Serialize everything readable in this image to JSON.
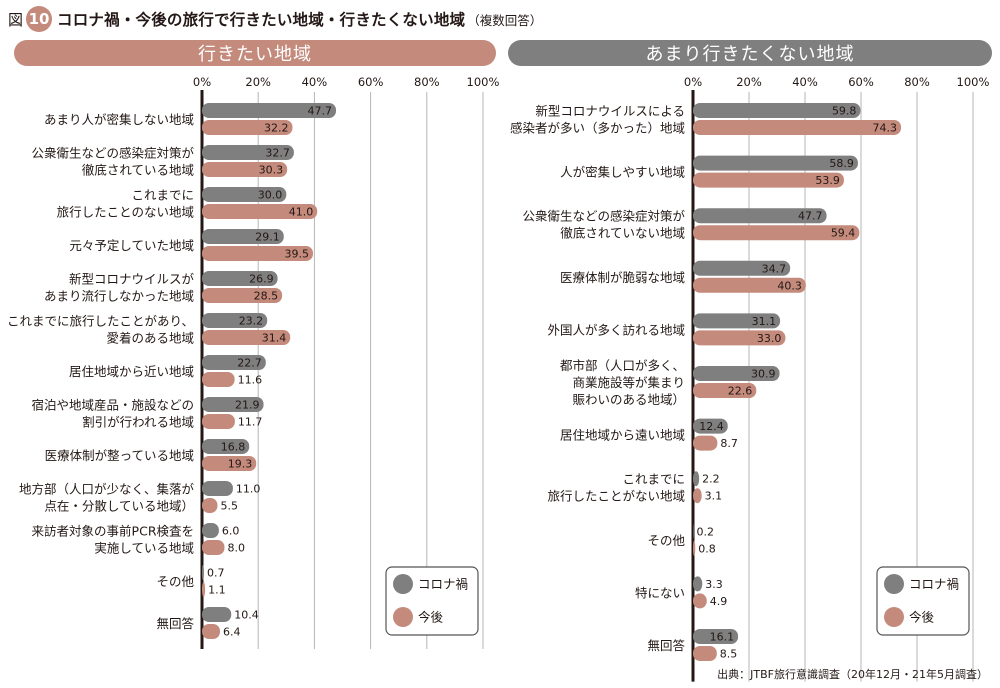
{
  "figure": {
    "label": "図",
    "number": "10",
    "title": "コロナ禍・今後の旅行で行きたい地域・行きたくない地域",
    "subtitle": "（複数回答）",
    "source": "出典：JTBF旅行意識調査（20年12月・21年5月調査）"
  },
  "colors": {
    "corona": "#7f7f7f",
    "future": "#c48a7c"
  },
  "chart_data": [
    {
      "type": "bar",
      "orientation": "horizontal",
      "title": "行きたい地域",
      "x_ticks": [
        "0%",
        "20%",
        "40%",
        "60%",
        "80%",
        "100%"
      ],
      "xlim": [
        0,
        100
      ],
      "grid": true,
      "legend_position": "bottom-right",
      "categories": [
        [
          "あまり人が密集しない地域"
        ],
        [
          "公衆衛生などの感染症対策が",
          "徹底されている地域"
        ],
        [
          "これまでに",
          "旅行したことのない地域"
        ],
        [
          "元々予定していた地域"
        ],
        [
          "新型コロナウイルスが",
          "あまり流行しなかった地域"
        ],
        [
          "これまでに旅行したことがあり、",
          "愛着のある地域"
        ],
        [
          "居住地域から近い地域"
        ],
        [
          "宿泊や地域産品・施設などの",
          "割引が行われる地域"
        ],
        [
          "医療体制が整っている地域"
        ],
        [
          "地方部（人口が少なく、集落が",
          "点在・分散している地域）"
        ],
        [
          "来訪者対象の事前PCR検査を",
          "実施している地域"
        ],
        [
          "その他"
        ],
        [
          "無回答"
        ]
      ],
      "series": [
        {
          "name": "コロナ禍",
          "values": [
            47.7,
            32.7,
            30.0,
            29.1,
            26.9,
            23.2,
            22.7,
            21.9,
            16.8,
            11.0,
            6.0,
            0.7,
            10.4
          ]
        },
        {
          "name": "今後",
          "values": [
            32.2,
            30.3,
            41.0,
            39.5,
            28.5,
            31.4,
            11.6,
            11.7,
            19.3,
            5.5,
            8.0,
            1.1,
            6.4
          ]
        }
      ]
    },
    {
      "type": "bar",
      "orientation": "horizontal",
      "title": "あまり行きたくない地域",
      "x_ticks": [
        "0%",
        "20%",
        "40%",
        "60%",
        "80%",
        "100%"
      ],
      "xlim": [
        0,
        100
      ],
      "grid": true,
      "legend_position": "bottom-right",
      "categories": [
        [
          "新型コロナウイルスによる",
          "感染者が多い（多かった）地域"
        ],
        [
          "人が密集しやすい地域"
        ],
        [
          "公衆衛生などの感染症対策が",
          "徹底されていない地域"
        ],
        [
          "医療体制が脆弱な地域"
        ],
        [
          "外国人が多く訪れる地域"
        ],
        [
          "都市部（人口が多く、",
          "商業施設等が集まり",
          "賑わいのある地域）"
        ],
        [
          "居住地域から遠い地域"
        ],
        [
          "これまでに",
          "旅行したことがない地域"
        ],
        [
          "その他"
        ],
        [
          "特にない"
        ],
        [
          "無回答"
        ]
      ],
      "series": [
        {
          "name": "コロナ禍",
          "values": [
            59.8,
            58.9,
            47.7,
            34.7,
            31.1,
            30.9,
            12.4,
            2.2,
            0.2,
            3.3,
            16.1
          ]
        },
        {
          "name": "今後",
          "values": [
            74.3,
            53.9,
            59.4,
            40.3,
            33.0,
            22.6,
            8.7,
            3.1,
            0.8,
            4.9,
            8.5
          ]
        }
      ]
    }
  ]
}
